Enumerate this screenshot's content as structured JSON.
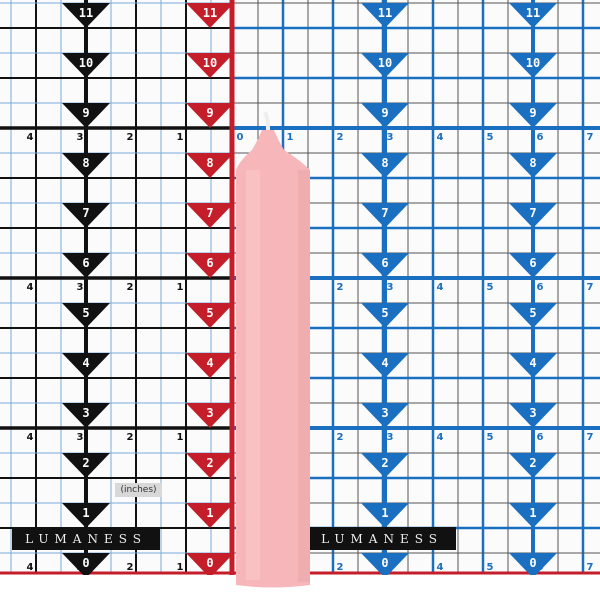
{
  "scene": "Pink taper candle standing in front of a measurement grid",
  "brand": "LUMANESS",
  "unit_label": "(inches)",
  "height_markers": [
    "0",
    "1",
    "2",
    "3",
    "4",
    "5",
    "6",
    "7",
    "8",
    "9",
    "10",
    "11"
  ],
  "left_width_labels": [
    "4",
    "3",
    "2",
    "1"
  ],
  "right_width_labels": [
    "0",
    "1",
    "2",
    "3",
    "4",
    "5",
    "6",
    "7"
  ],
  "colors": {
    "black_grid": "#111111",
    "red_scale": "#c41e2a",
    "blue_grid": "#1a6fc0",
    "candle": "#f7b6b9"
  }
}
